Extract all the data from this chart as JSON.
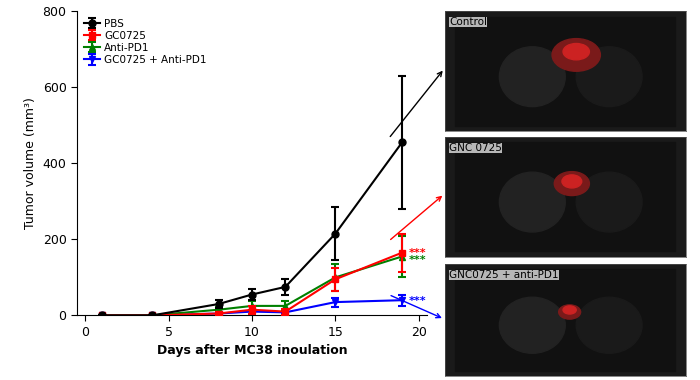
{
  "days": [
    1,
    4,
    8,
    10,
    12,
    15,
    19
  ],
  "pbs": [
    0,
    0,
    30,
    55,
    75,
    215,
    455
  ],
  "pbs_err": [
    0,
    2,
    10,
    15,
    20,
    70,
    175
  ],
  "gc0725": [
    0,
    0,
    5,
    15,
    10,
    95,
    165
  ],
  "gc0725_err": [
    0,
    2,
    5,
    10,
    8,
    30,
    50
  ],
  "antipd1": [
    0,
    0,
    15,
    25,
    25,
    100,
    155
  ],
  "antipd1_err": [
    0,
    2,
    8,
    12,
    12,
    35,
    55
  ],
  "combo": [
    0,
    0,
    5,
    10,
    8,
    35,
    40
  ],
  "combo_err": [
    0,
    2,
    3,
    5,
    4,
    12,
    15
  ],
  "pbs_color": "#000000",
  "gc0725_color": "#ff0000",
  "antipd1_color": "#008000",
  "combo_color": "#0000ff",
  "ylabel": "Tumor volume (mm³)",
  "xlabel": "Days after MC38 inoulation",
  "ylim": [
    0,
    800
  ],
  "yticks": [
    0,
    200,
    400,
    600,
    800
  ],
  "xticks": [
    0,
    5,
    10,
    15,
    20
  ],
  "legend_labels": [
    "PBS",
    "GC0725",
    "Anti-PD1",
    "GC0725 + Anti-PD1"
  ],
  "sig_red": "***",
  "sig_green": "***",
  "sig_blue": "***",
  "control_label": "Control",
  "gnc_label": "GNC 0725",
  "combo_label": "GNC0725 + anti-PD1",
  "photo_bg": "#1a1a1a",
  "photo_tumor_color": "#8B2020"
}
